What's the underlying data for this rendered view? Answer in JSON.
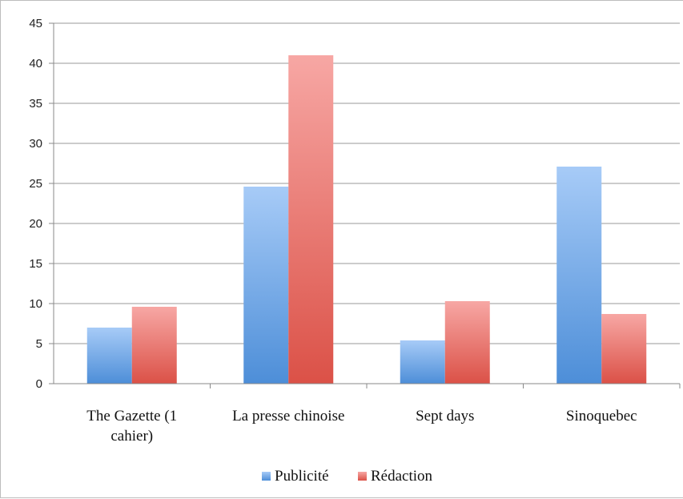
{
  "chart_data": {
    "type": "bar",
    "categories": [
      "The Gazette (1 cahier)",
      "La presse chinoise",
      "Sept days",
      "Sinoquebec"
    ],
    "category_lines": [
      [
        "The Gazette (1",
        "cahier)"
      ],
      [
        "La presse chinoise"
      ],
      [
        "Sept days"
      ],
      [
        "Sinoquebec"
      ]
    ],
    "series": [
      {
        "name": "Publicité",
        "values": [
          7,
          24.6,
          5.4,
          27.1
        ],
        "color": "#5b9bd5"
      },
      {
        "name": "Rédaction",
        "values": [
          9.6,
          41,
          10.3,
          8.7
        ],
        "color": "#e05a4f"
      }
    ],
    "ylim": [
      0,
      45
    ],
    "yticks": [
      "0",
      "5",
      "10",
      "15",
      "20",
      "25",
      "30",
      "35",
      "40",
      "45"
    ],
    "grid": true,
    "legend_position": "bottom",
    "title": "",
    "xlabel": "",
    "ylabel": ""
  }
}
